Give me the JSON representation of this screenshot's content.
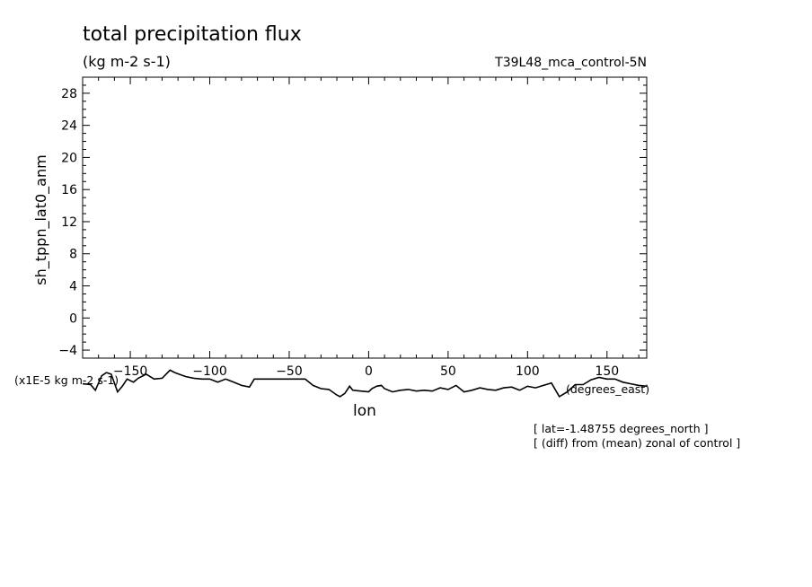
{
  "chart_data": {
    "type": "line",
    "title": "total precipitation flux",
    "units_label": "(kg m-2 s-1)",
    "run_label": "T39L48_mca_control-5N",
    "ylabel": "sh_tppn_lat0_anm",
    "xlabel": "lon",
    "x_units": "(degrees_east)",
    "y_scale_note": "(x1E-5 kg m-2 s-1)",
    "xlim": [
      -180,
      175
    ],
    "ylim": [
      -5,
      30
    ],
    "x_ticks": [
      -150,
      -100,
      -50,
      0,
      50,
      100,
      150
    ],
    "y_ticks": [
      -4,
      0,
      4,
      8,
      12,
      16,
      20,
      24,
      28
    ],
    "annotations": [
      "[ lat=-1.48755 degrees_north ]",
      "[ (diff) from (mean) zonal of control ]"
    ],
    "series": [
      {
        "x": [
          -180,
          -175,
          -172,
          -168,
          -165,
          -162,
          -158,
          -155,
          -152,
          -148,
          -145,
          -140,
          -135,
          -130,
          -125,
          -122,
          -118,
          -115,
          -110,
          -105,
          -100,
          -95,
          -90,
          -85,
          -80,
          -75,
          -72,
          -68,
          -65,
          -60,
          -55,
          -50,
          -45,
          -40,
          -35,
          -30,
          -25,
          -20,
          -18,
          -15,
          -12,
          -10,
          -5,
          0,
          2,
          5,
          8,
          10,
          15,
          20,
          25,
          30,
          35,
          40,
          45,
          50,
          55,
          60,
          65,
          70,
          75,
          80,
          85,
          90,
          95,
          100,
          105,
          110,
          115,
          120,
          125,
          130,
          135,
          140,
          145,
          150,
          155,
          160,
          165,
          170,
          175
        ],
        "values": [
          -8.2,
          -8.3,
          -9.0,
          -7.2,
          -6.8,
          -7.0,
          -9.2,
          -8.5,
          -7.6,
          -8.0,
          -7.5,
          -7.0,
          -7.6,
          -7.5,
          -6.5,
          -6.8,
          -7.1,
          -7.3,
          -7.5,
          -7.6,
          -7.6,
          -8.0,
          -7.6,
          -8.0,
          -8.4,
          -8.6,
          -7.6,
          -7.6,
          -7.6,
          -7.6,
          -7.6,
          -7.6,
          -7.6,
          -7.6,
          -8.4,
          -8.8,
          -8.9,
          -9.6,
          -9.8,
          -9.4,
          -8.5,
          -9.0,
          -9.1,
          -9.2,
          -8.8,
          -8.5,
          -8.4,
          -8.8,
          -9.2,
          -9.0,
          -8.9,
          -9.1,
          -9.0,
          -9.1,
          -8.7,
          -8.9,
          -8.4,
          -9.2,
          -9.0,
          -8.7,
          -8.9,
          -9.0,
          -8.7,
          -8.6,
          -9.0,
          -8.5,
          -8.7,
          -8.4,
          -8.1,
          -9.8,
          -9.2,
          -8.3,
          -8.3,
          -7.7,
          -7.4,
          -7.6,
          -7.6,
          -8.0,
          -8.2,
          -8.4,
          -8.5
        ]
      }
    ]
  }
}
